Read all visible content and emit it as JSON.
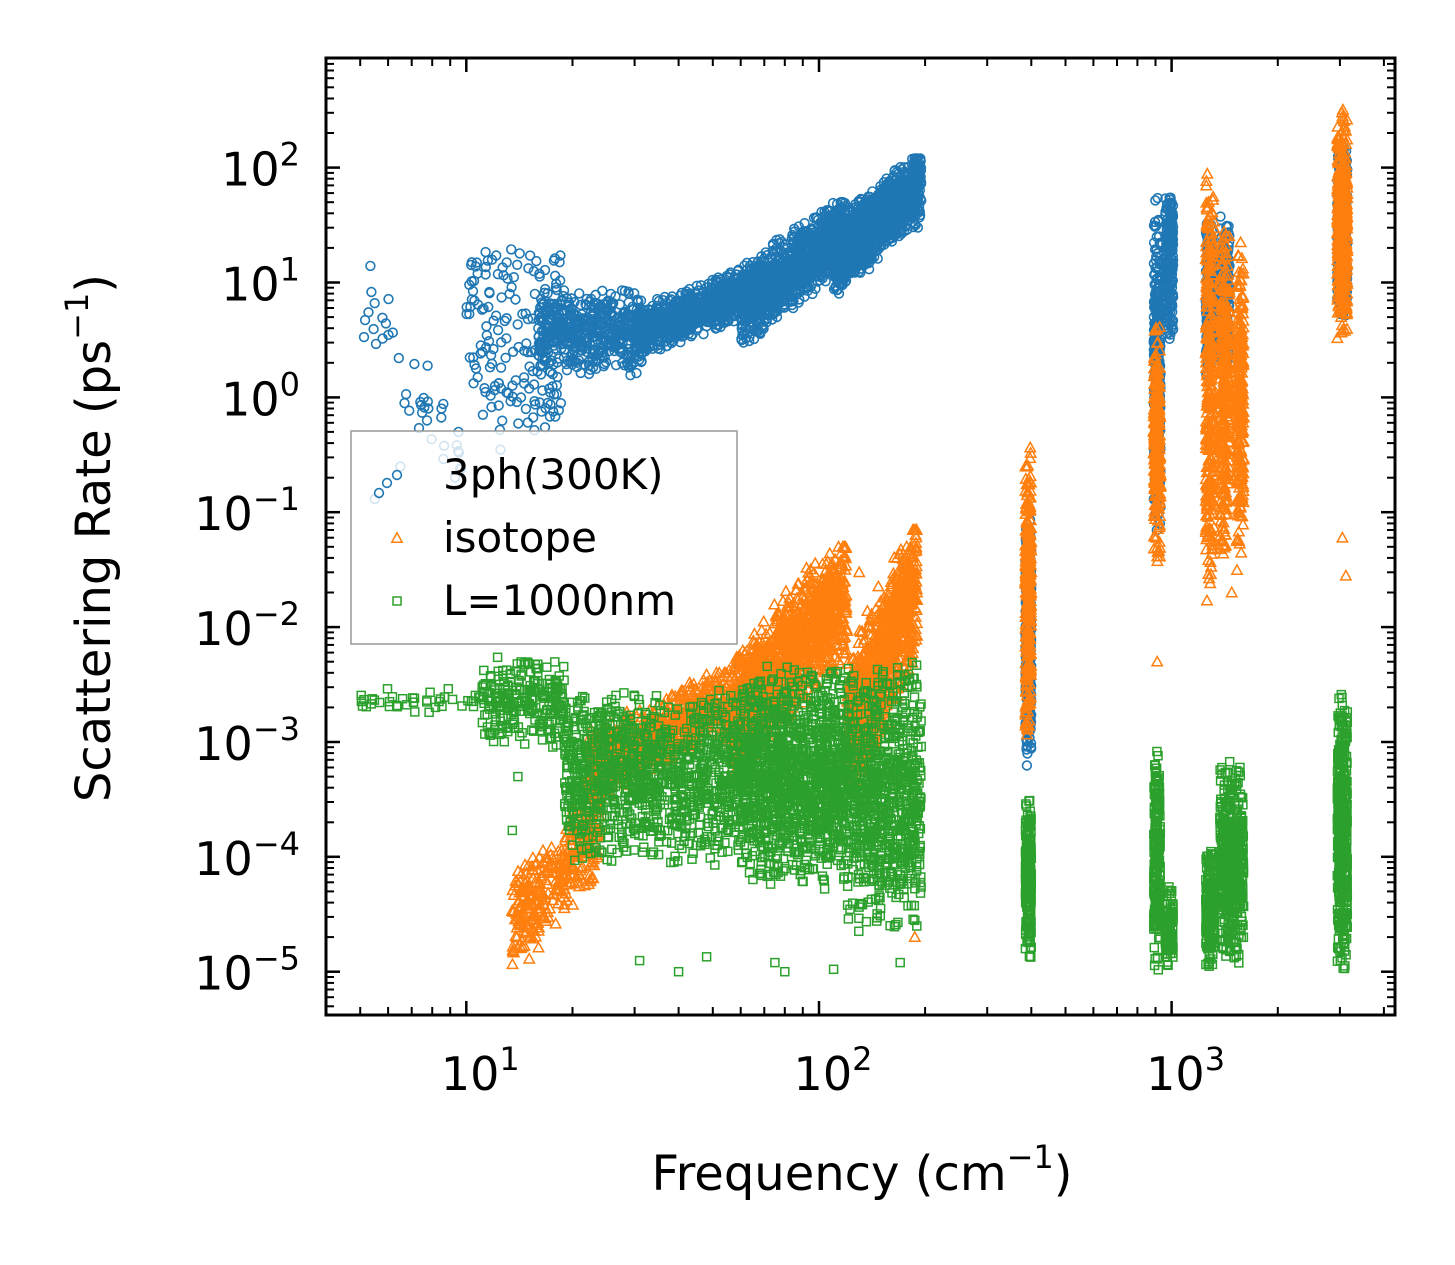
{
  "chart_data": {
    "type": "scatter",
    "xscale": "log",
    "yscale": "log",
    "xlim": [
      4,
      4300
    ],
    "ylim": [
      4.2e-06,
      900
    ],
    "xlabel": "Frequency (cm",
    "xlabel_sup": "−1",
    "xlabel_end": ")",
    "ylabel": "Scattering Rate (ps",
    "ylabel_sup": "−1",
    "ylabel_end": ")",
    "x_ticks": [
      {
        "value": 10,
        "base": "10",
        "exp": "1"
      },
      {
        "value": 100,
        "base": "10",
        "exp": "2"
      },
      {
        "value": 1000,
        "base": "10",
        "exp": "3"
      }
    ],
    "y_ticks": [
      {
        "value": 100,
        "base": "10",
        "exp": "2"
      },
      {
        "value": 10,
        "base": "10",
        "exp": "1"
      },
      {
        "value": 1,
        "base": "10",
        "exp": "0"
      },
      {
        "value": 0.1,
        "base": "10",
        "exp": "−1"
      },
      {
        "value": 0.01,
        "base": "10",
        "exp": "−2"
      },
      {
        "value": 0.001,
        "base": "10",
        "exp": "−3"
      },
      {
        "value": 0.0001,
        "base": "10",
        "exp": "−4"
      },
      {
        "value": 1e-05,
        "base": "10",
        "exp": "−5"
      }
    ],
    "legend_position": "center-left",
    "series": [
      {
        "name": "3ph(300K)",
        "marker": "circle",
        "color": "#1f77b4",
        "clusters": [
          {
            "x": [
              5,
              10
            ],
            "y": [
              0.1,
              25
            ],
            "n": 40,
            "trend": "down"
          },
          {
            "x": [
              10,
              19
            ],
            "y": [
              0.5,
              20
            ],
            "n": 180,
            "trend": "spread"
          },
          {
            "x": [
              16,
              32
            ],
            "y": [
              1.5,
              9
            ],
            "n": 500,
            "trend": "flat"
          },
          {
            "x": [
              30,
              70
            ],
            "y": [
              2.2,
              14
            ],
            "n": 900,
            "trend": "up"
          },
          {
            "x": [
              60,
              120
            ],
            "y": [
              3,
              50
            ],
            "n": 1100,
            "trend": "up"
          },
          {
            "x": [
              110,
              195
            ],
            "y": [
              8,
              120
            ],
            "n": 1100,
            "trend": "up"
          },
          {
            "x": [
              385,
              400
            ],
            "y": [
              0.0006,
              0.1
            ],
            "n": 350,
            "trend": "flat"
          },
          {
            "x": [
              890,
              930
            ],
            "y": [
              0.05,
              60
            ],
            "n": 380,
            "trend": "flat"
          },
          {
            "x": [
              960,
              1010
            ],
            "y": [
              3,
              65
            ],
            "n": 250,
            "trend": "flat"
          },
          {
            "x": [
              1250,
              1320
            ],
            "y": [
              1.5,
              40
            ],
            "n": 250,
            "trend": "flat"
          },
          {
            "x": [
              1370,
              1460
            ],
            "y": [
              2,
              40
            ],
            "n": 200,
            "trend": "flat"
          },
          {
            "x": [
              2950,
              3150
            ],
            "y": [
              5,
              180
            ],
            "n": 350,
            "trend": "flat"
          }
        ],
        "points": [
          [
            7.8,
            0.8
          ],
          [
            6.5,
            0.25
          ],
          [
            5.5,
            0.13
          ],
          [
            9.5,
            0.5
          ],
          [
            12.5,
            0.35
          ]
        ]
      },
      {
        "name": "isotope",
        "marker": "triangle",
        "color": "#ff7f0e",
        "clusters": [
          {
            "x": [
              13.5,
              24
            ],
            "y": [
              1e-05,
              0.0004
            ],
            "n": 350,
            "trend": "up"
          },
          {
            "x": [
              22,
              55
            ],
            "y": [
              0.0003,
              0.004
            ],
            "n": 700,
            "trend": "up"
          },
          {
            "x": [
              55,
              120
            ],
            "y": [
              0.0005,
              0.05
            ],
            "n": 1200,
            "trend": "up"
          },
          {
            "x": [
              120,
              190
            ],
            "y": [
              0.0003,
              0.07
            ],
            "n": 900,
            "trend": "up"
          },
          {
            "x": [
              385,
              400
            ],
            "y": [
              0.0008,
              0.45
            ],
            "n": 300,
            "trend": "flat"
          },
          {
            "x": [
              890,
              930
            ],
            "y": [
              0.03,
              5
            ],
            "n": 250,
            "trend": "flat"
          },
          {
            "x": [
              1250,
              1320
            ],
            "y": [
              0.02,
              100
            ],
            "n": 320,
            "trend": "flat"
          },
          {
            "x": [
              1370,
              1460
            ],
            "y": [
              0.03,
              40
            ],
            "n": 320,
            "trend": "flat"
          },
          {
            "x": [
              1530,
              1600
            ],
            "y": [
              0.03,
              25
            ],
            "n": 280,
            "trend": "flat"
          },
          {
            "x": [
              2950,
              3150
            ],
            "y": [
              3,
              350
            ],
            "n": 420,
            "trend": "flat"
          }
        ],
        "points": [
          [
            187,
            2e-05
          ],
          [
            130,
            0.03
          ],
          [
            910,
            0.005
          ],
          [
            1260,
            0.017
          ],
          [
            3050,
            0.06
          ],
          [
            3120,
            0.028
          ],
          [
            1480,
            0.02
          ]
        ]
      },
      {
        "name": "L=1000nm",
        "marker": "square",
        "color": "#2ca02c",
        "clusters": [
          {
            "x": [
              5,
              11
            ],
            "y": [
              0.0017,
              0.0032
            ],
            "n": 40,
            "trend": "flat"
          },
          {
            "x": [
              11,
              19
            ],
            "y": [
              0.0009,
              0.006
            ],
            "n": 250,
            "trend": "flat"
          },
          {
            "x": [
              19,
              60
            ],
            "y": [
              8e-05,
              0.003
            ],
            "n": 1100,
            "trend": "flat"
          },
          {
            "x": [
              60,
              120
            ],
            "y": [
              5e-05,
              0.005
            ],
            "n": 1300,
            "trend": "flat"
          },
          {
            "x": [
              120,
              195
            ],
            "y": [
              2e-05,
              0.005
            ],
            "n": 800,
            "trend": "flat"
          },
          {
            "x": [
              385,
              400
            ],
            "y": [
              1.1e-05,
              0.0004
            ],
            "n": 220,
            "trend": "flat"
          },
          {
            "x": [
              890,
              930
            ],
            "y": [
              1e-05,
              0.0009
            ],
            "n": 220,
            "trend": "flat"
          },
          {
            "x": [
              960,
              1010
            ],
            "y": [
              1e-05,
              6e-05
            ],
            "n": 100,
            "trend": "flat"
          },
          {
            "x": [
              1250,
              1320
            ],
            "y": [
              1e-05,
              0.00012
            ],
            "n": 200,
            "trend": "flat"
          },
          {
            "x": [
              1370,
              1600
            ],
            "y": [
              1e-05,
              0.0007
            ],
            "n": 500,
            "trend": "flat"
          },
          {
            "x": [
              2950,
              3150
            ],
            "y": [
              1e-05,
              0.0035
            ],
            "n": 420,
            "trend": "flat"
          }
        ],
        "points": [
          [
            13.5,
            0.00017
          ],
          [
            14,
            0.0005
          ],
          [
            31,
            1.25e-05
          ],
          [
            40,
            1e-05
          ],
          [
            48,
            1.35e-05
          ],
          [
            75,
            1.2e-05
          ],
          [
            110,
            1.05e-05
          ],
          [
            80,
            1e-05
          ],
          [
            170,
            1.2e-05
          ]
        ]
      }
    ]
  }
}
